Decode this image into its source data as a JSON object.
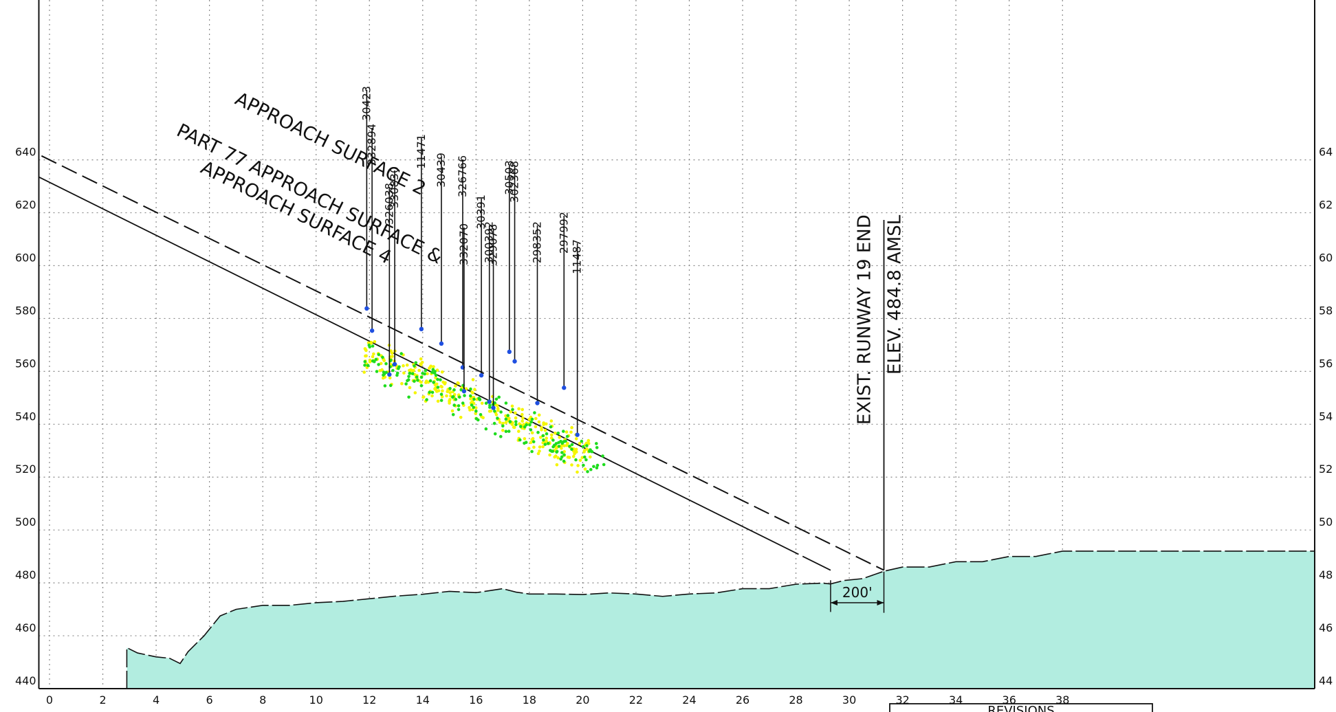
{
  "chart_data": {
    "type": "scatter",
    "title": "",
    "xlabel": "",
    "ylabel": "",
    "xlim": [
      -0.4,
      38
    ],
    "ylim": [
      440,
      641
    ],
    "x_ticks": [
      0,
      2,
      4,
      6,
      8,
      10,
      12,
      14,
      16,
      18,
      20,
      22,
      24,
      26,
      28,
      30,
      32,
      34,
      36,
      38
    ],
    "y_ticks": [
      440,
      460,
      480,
      500,
      520,
      540,
      560,
      580,
      600,
      620,
      640
    ],
    "x_tick_labels": [
      "0",
      "2",
      "4",
      "6",
      "8",
      "10",
      "12",
      "14",
      "16",
      "18",
      "20",
      "22",
      "24",
      "26",
      "28",
      "30",
      "32",
      "34",
      "36",
      "38"
    ],
    "y_tick_labels_left": [
      "440",
      "460",
      "480",
      "500",
      "520",
      "540",
      "560",
      "580",
      "600",
      "620",
      "640"
    ],
    "y_tick_labels_right": [
      "44",
      "46",
      "48",
      "50",
      "52",
      "54",
      "56",
      "58",
      "60",
      "62",
      "64"
    ],
    "grid": true,
    "surfaces": [
      {
        "label": "APPROACH SURFACE 2",
        "style": "dashed",
        "x": [
          -0.3,
          31.3
        ],
        "y": [
          641.5,
          484.8
        ]
      },
      {
        "label_lines": [
          "PART 77 APPROACH SURFACE &",
          "APPROACH SURFACE 4"
        ],
        "style": "solid",
        "x": [
          -0.4,
          29.3
        ],
        "y": [
          633.5,
          484.8
        ]
      }
    ],
    "terrain": {
      "x": [
        2.9,
        3.3,
        4,
        4.5,
        4.9,
        5.2,
        5.8,
        6.4,
        7,
        8,
        9,
        10,
        11,
        12,
        13,
        14,
        15,
        16,
        17,
        17.5,
        18,
        19,
        20,
        21,
        22,
        23,
        24,
        25,
        26,
        27,
        28,
        29,
        29.3,
        29.8,
        30.5,
        31.3,
        32,
        33,
        34,
        35,
        36,
        37,
        38
      ],
      "y": [
        455.5,
        453.5,
        452,
        451.5,
        449.5,
        454,
        460,
        467.5,
        470,
        471.5,
        471.5,
        472.5,
        473,
        474,
        475,
        475.7,
        476.8,
        476.3,
        477.8,
        476.5,
        475.8,
        475.8,
        475.6,
        476.2,
        475.8,
        474.9,
        475.8,
        476.2,
        477.8,
        477.8,
        479.5,
        479.9,
        479.6,
        480.9,
        481.6,
        484.4,
        486,
        486,
        488,
        488,
        490,
        490,
        492
      ]
    },
    "obstructions": [
      {
        "id": "30423",
        "x": 11.9,
        "y": 583.8
      },
      {
        "id": "332894",
        "x": 12.1,
        "y": 575.4
      },
      {
        "id": "326038",
        "x": 12.75,
        "y": 558.8
      },
      {
        "id": "330830",
        "x": 12.95,
        "y": 562.7
      },
      {
        "id": "11471",
        "x": 13.95,
        "y": 576
      },
      {
        "id": "30439",
        "x": 14.7,
        "y": 570.5
      },
      {
        "id": "326766",
        "x": 15.5,
        "y": 561.5
      },
      {
        "id": "332070",
        "x": 15.55,
        "y": 552.5
      },
      {
        "id": "30391",
        "x": 16.2,
        "y": 558.5
      },
      {
        "id": "300392",
        "x": 16.5,
        "y": 548.5
      },
      {
        "id": "329078",
        "x": 16.65,
        "y": 546.2
      },
      {
        "id": "30503",
        "x": 17.25,
        "y": 567.4
      },
      {
        "id": "302368",
        "x": 17.45,
        "y": 563.8
      },
      {
        "id": "298352",
        "x": 18.3,
        "y": 548
      },
      {
        "id": "297992",
        "x": 19.3,
        "y": 553.8
      },
      {
        "id": "11487",
        "x": 19.8,
        "y": 536
      }
    ],
    "point_cloud": {
      "series": [
        {
          "name": "",
          "color": "#f5f500",
          "count": 300,
          "x_range": [
            11.8,
            20.3
          ],
          "center_line": {
            "x": [
              11.8,
              20.3
            ],
            "y": [
              568,
              527
            ]
          },
          "spread": 9
        },
        {
          "name": "",
          "color": "#1edc1e",
          "count": 180,
          "x_range": [
            11.8,
            20.8
          ],
          "center_line": {
            "x": [
              11.8,
              20.8
            ],
            "y": [
              566,
              525
            ]
          },
          "spread": 9
        }
      ]
    },
    "runway_end": {
      "line1": "EXIST. RUNWAY 19 END",
      "line2": "ELEV. 484.8 AMSL",
      "x": 31.3,
      "elevation": 484.8
    },
    "dimension": {
      "label": "200'",
      "x": [
        29.3,
        31.3
      ]
    },
    "revisions_label": "REVISIONS",
    "colors": {
      "terrain": "#b2ede0",
      "obstruction": "#1f4fe0",
      "yellow": "#f5f500",
      "green": "#1edc1e",
      "grid": "#888888",
      "line": "#111111"
    }
  }
}
